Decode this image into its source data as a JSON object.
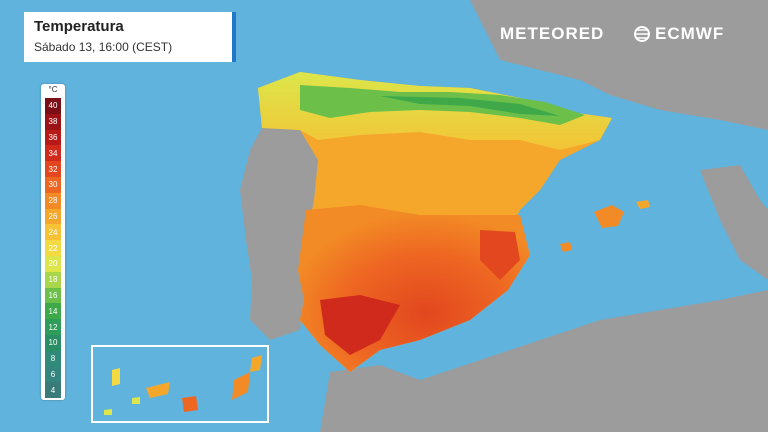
{
  "header": {
    "title": "Temperatura",
    "subtitle": "Sábado 13, 16:00 (CEST)"
  },
  "brand": {
    "left": "METEORED",
    "right": "ECMWF"
  },
  "legend": {
    "unit": "°C",
    "items": [
      {
        "label": "40",
        "color": "#7a0f18"
      },
      {
        "label": "38",
        "color": "#9b1317"
      },
      {
        "label": "36",
        "color": "#b81a18"
      },
      {
        "label": "34",
        "color": "#cf2a1b"
      },
      {
        "label": "32",
        "color": "#e2471f"
      },
      {
        "label": "30",
        "color": "#ee6722"
      },
      {
        "label": "28",
        "color": "#f28a25"
      },
      {
        "label": "26",
        "color": "#f5a72b"
      },
      {
        "label": "24",
        "color": "#f7c236"
      },
      {
        "label": "22",
        "color": "#f3da43"
      },
      {
        "label": "20",
        "color": "#dce64a"
      },
      {
        "label": "18",
        "color": "#a9d64b"
      },
      {
        "label": "16",
        "color": "#6cc04a"
      },
      {
        "label": "14",
        "color": "#3fa94a"
      },
      {
        "label": "12",
        "color": "#2f9d5a"
      },
      {
        "label": "10",
        "color": "#2b8f66"
      },
      {
        "label": "8",
        "color": "#2f8a7a"
      },
      {
        "label": "6",
        "color": "#34857e"
      },
      {
        "label": "4",
        "color": "#3a7a78"
      }
    ]
  },
  "colors": {
    "sea": "#5fb3dd",
    "land_outside": "#9a9a9a",
    "box_border": "#ffffff"
  }
}
